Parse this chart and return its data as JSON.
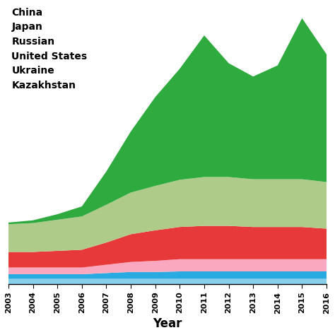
{
  "years": [
    2003,
    2004,
    2005,
    2006,
    2007,
    2008,
    2009,
    2010,
    2011,
    2012,
    2013,
    2014,
    2015,
    2016
  ],
  "countries": [
    "Kazakhstan",
    "Ukraine",
    "United States",
    "Russian",
    "Japan",
    "China"
  ],
  "colors": [
    "#87CEEB",
    "#29ABE2",
    "#F9A8C0",
    "#E8393A",
    "#AECB8A",
    "#2EAA3E"
  ],
  "data": {
    "Kazakhstan": [
      10,
      10,
      10,
      10,
      10,
      10,
      10,
      10,
      10,
      10,
      10,
      10,
      10,
      10
    ],
    "Ukraine": [
      8,
      8,
      8,
      8,
      10,
      12,
      12,
      13,
      13,
      13,
      13,
      13,
      13,
      13
    ],
    "United States": [
      12,
      12,
      12,
      12,
      15,
      18,
      20,
      22,
      22,
      22,
      22,
      22,
      22,
      22
    ],
    "Russian": [
      28,
      28,
      30,
      32,
      40,
      50,
      55,
      58,
      60,
      60,
      58,
      58,
      58,
      55
    ],
    "Japan": [
      50,
      52,
      56,
      60,
      68,
      75,
      80,
      85,
      88,
      88,
      86,
      86,
      86,
      84
    ],
    "China": [
      3,
      5,
      10,
      18,
      60,
      110,
      160,
      200,
      255,
      205,
      185,
      205,
      290,
      230
    ]
  },
  "legend_labels": [
    "China",
    "Japan",
    "Russian",
    "United States",
    "Ukraine",
    "Kazakhstan"
  ],
  "xlabel": "Year",
  "figsize": [
    4.74,
    4.74
  ],
  "dpi": 100
}
